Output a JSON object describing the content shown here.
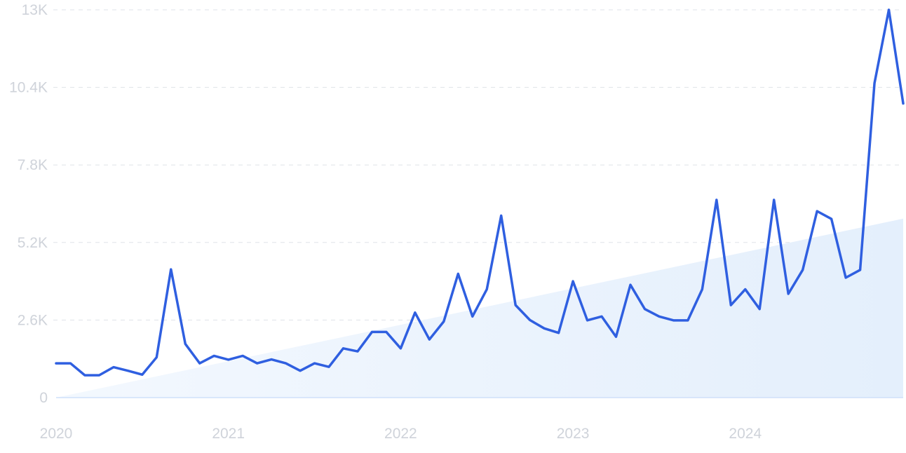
{
  "chart_data": {
    "type": "line",
    "title": "",
    "xlabel": "",
    "ylabel": "",
    "ylim": [
      0,
      13000
    ],
    "y_ticks": [
      {
        "value": 0,
        "label": "0"
      },
      {
        "value": 2600,
        "label": "2.6K"
      },
      {
        "value": 5200,
        "label": "5.2K"
      },
      {
        "value": 7800,
        "label": "7.8K"
      },
      {
        "value": 10400,
        "label": "10.4K"
      },
      {
        "value": 13000,
        "label": "13K"
      }
    ],
    "x_ticks": [
      "2020",
      "2021",
      "2022",
      "2023",
      "2024"
    ],
    "x_start_label": "2020-01",
    "grid": "horizontal-dashed",
    "legend": "none",
    "colors": {
      "line": "#2f5fe0",
      "trend_fill_light": "#f3f8fe",
      "trend_fill_dark": "#e4effc"
    },
    "series": [
      {
        "x": [
          "2020-01",
          "2020-02",
          "2020-03",
          "2020-04",
          "2020-05",
          "2020-06",
          "2020-07",
          "2020-08",
          "2020-09",
          "2020-10",
          "2020-11",
          "2020-12",
          "2021-01",
          "2021-02",
          "2021-03",
          "2021-04",
          "2021-05",
          "2021-06",
          "2021-07",
          "2021-08",
          "2021-09",
          "2021-10",
          "2021-11",
          "2021-12",
          "2022-01",
          "2022-02",
          "2022-03",
          "2022-04",
          "2022-05",
          "2022-06",
          "2022-07",
          "2022-08",
          "2022-09",
          "2022-10",
          "2022-11",
          "2022-12",
          "2023-01",
          "2023-02",
          "2023-03",
          "2023-04",
          "2023-05",
          "2023-06",
          "2023-07",
          "2023-08",
          "2023-09",
          "2023-10",
          "2023-11",
          "2023-12",
          "2024-01",
          "2024-02",
          "2024-03",
          "2024-04",
          "2024-05",
          "2024-06",
          "2024-07",
          "2024-08",
          "2024-09",
          "2024-10",
          "2024-11",
          "2024-12"
        ],
        "values": [
          1150,
          1150,
          750,
          750,
          1020,
          900,
          770,
          1350,
          4300,
          1800,
          1150,
          1400,
          1270,
          1400,
          1150,
          1280,
          1150,
          900,
          1150,
          1030,
          1650,
          1550,
          2200,
          2200,
          1650,
          2850,
          1950,
          2550,
          4150,
          2720,
          3630,
          6100,
          3100,
          2600,
          2320,
          2170,
          3900,
          2590,
          2720,
          2040,
          3780,
          2970,
          2720,
          2590,
          2590,
          3630,
          6630,
          3100,
          3630,
          2970,
          6630,
          3480,
          4280,
          6250,
          5990,
          4020,
          4280,
          10540,
          13000,
          9860
        ]
      }
    ],
    "trend": {
      "start": 0,
      "end": 6000
    }
  }
}
